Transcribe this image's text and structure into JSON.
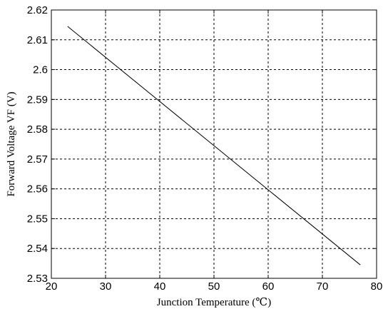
{
  "chart_data": {
    "type": "line",
    "title": "",
    "xlabel": "Junction Temperature (℃)",
    "ylabel": "Forward Voltage VF (V)",
    "xlim": [
      20,
      80
    ],
    "ylim": [
      2.53,
      2.62
    ],
    "x_ticks": [
      20,
      30,
      40,
      50,
      60,
      70,
      80
    ],
    "y_ticks": [
      2.53,
      2.54,
      2.55,
      2.56,
      2.57,
      2.58,
      2.59,
      2.6,
      2.61,
      2.62
    ],
    "x_tick_labels": [
      "20",
      "30",
      "40",
      "50",
      "60",
      "70",
      "80"
    ],
    "y_tick_labels": [
      "2.53",
      "2.54",
      "2.55",
      "2.56",
      "2.57",
      "2.58",
      "2.59",
      "2.6",
      "2.61",
      "2.62"
    ],
    "grid": true,
    "grid_style": "dashed",
    "legend": "none",
    "series": [
      {
        "color": "#000000",
        "x": [
          23,
          77
        ],
        "y": [
          2.6145,
          2.5345
        ]
      }
    ]
  }
}
